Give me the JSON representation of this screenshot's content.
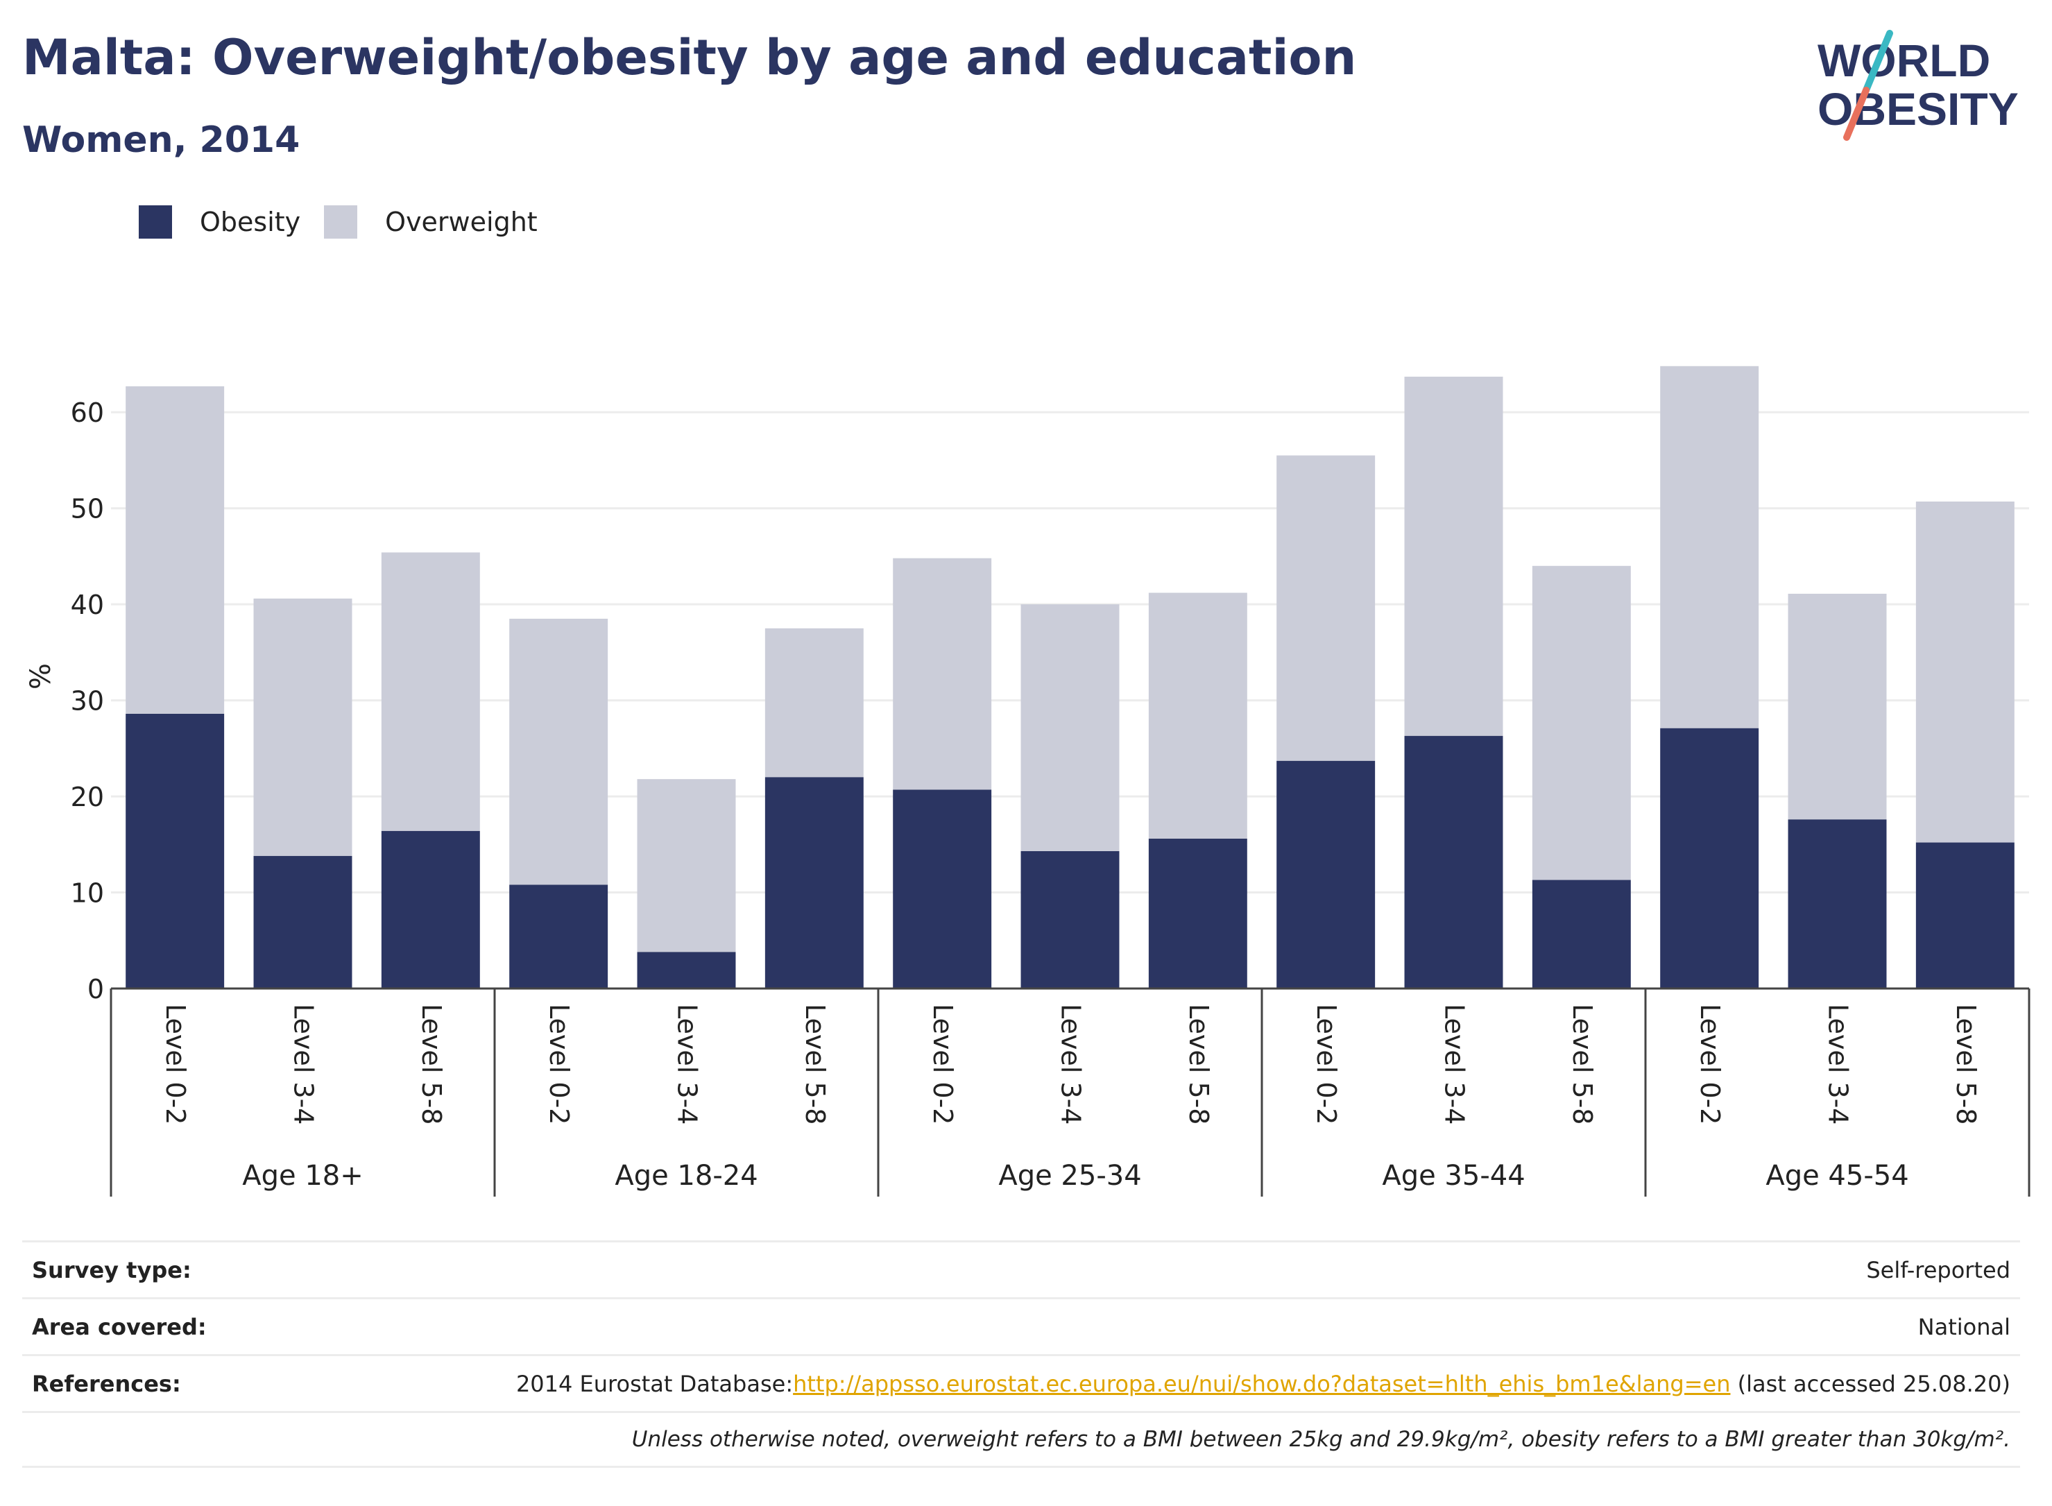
{
  "header": {
    "title": "Malta: Overweight/obesity by age and education",
    "subtitle": "Women, 2014"
  },
  "logo": {
    "line1": "WORLD",
    "line2": "OBESITY"
  },
  "colors": {
    "obesity": "#2b3562",
    "overweight": "#cbcdd9",
    "accent_teal": "#3ab8c3",
    "accent_red": "#e8705c",
    "link": "#e0a400"
  },
  "chart_data": {
    "type": "bar",
    "stacked": true,
    "ylabel": "%",
    "ylim": [
      0,
      65
    ],
    "yticks": [
      0,
      10,
      20,
      30,
      40,
      50,
      60
    ],
    "grid": true,
    "legend_position": "top-left",
    "categories": [
      "Level 0-2",
      "Level 3-4",
      "Level 5-8",
      "Level 0-2",
      "Level 3-4",
      "Level 5-8",
      "Level 0-2",
      "Level 3-4",
      "Level 5-8",
      "Level 0-2",
      "Level 3-4",
      "Level 5-8",
      "Level 0-2",
      "Level 3-4",
      "Level 5-8"
    ],
    "groups": [
      {
        "label": "Age 18+",
        "size": 3
      },
      {
        "label": "Age 18-24",
        "size": 3
      },
      {
        "label": "Age 25-34",
        "size": 3
      },
      {
        "label": "Age 35-44",
        "size": 3
      },
      {
        "label": "Age 45-54",
        "size": 3
      }
    ],
    "series": [
      {
        "name": "Obesity",
        "values": [
          28.6,
          13.8,
          16.4,
          10.8,
          3.8,
          22.0,
          20.7,
          14.3,
          15.6,
          23.7,
          26.3,
          11.3,
          27.1,
          17.6,
          15.2
        ]
      },
      {
        "name": "Overweight",
        "values": [
          34.1,
          26.8,
          29.0,
          27.7,
          18.0,
          15.5,
          24.1,
          25.7,
          25.6,
          31.8,
          37.4,
          32.7,
          37.7,
          23.5,
          35.5
        ]
      }
    ]
  },
  "info": {
    "survey_label": "Survey type:",
    "survey_value": "Self-reported",
    "area_label": "Area covered:",
    "area_value": "National",
    "references_label": "References:",
    "references_prefix": "2014 Eurostat Database:",
    "references_link": "http://appsso.eurostat.ec.europa.eu/nui/show.do?dataset=hlth_ehis_bm1e&lang=en",
    "references_suffix": " (last accessed 25.08.20)",
    "note": "Unless otherwise noted, overweight refers to a BMI between 25kg and 29.9kg/m², obesity refers to a BMI greater than 30kg/m²."
  }
}
